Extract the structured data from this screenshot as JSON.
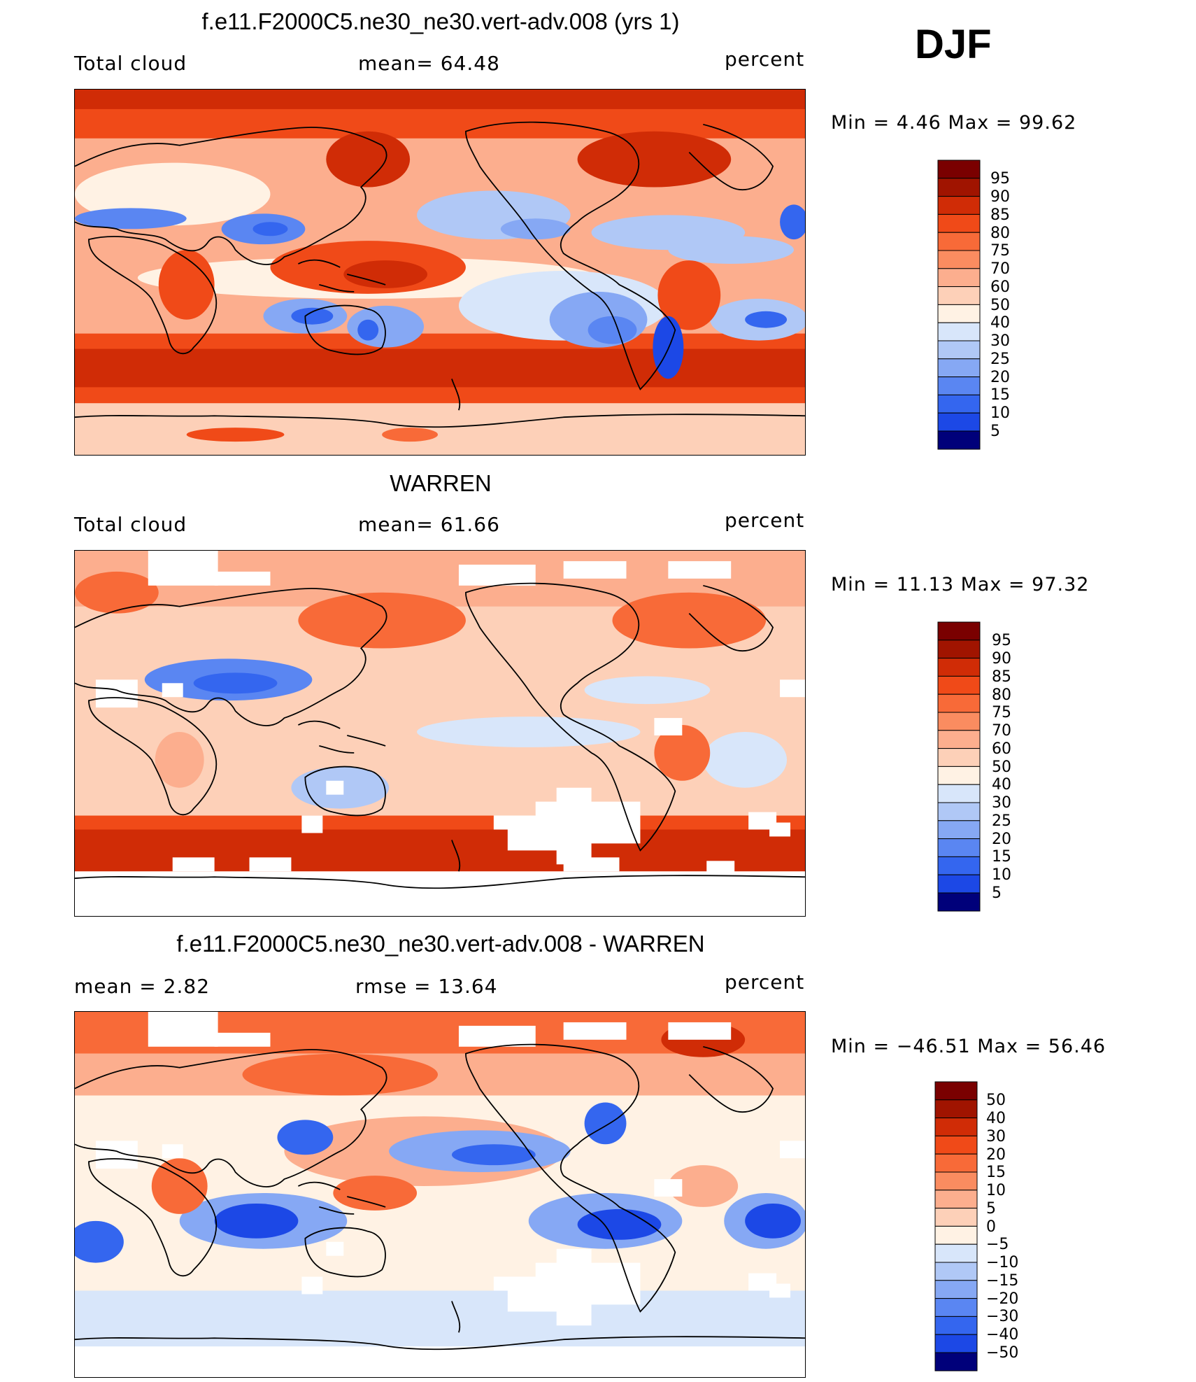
{
  "season": "DJF",
  "colors": {
    "scale": [
      "#00007a",
      "#0b28c0",
      "#1c48e6",
      "#3466ef",
      "#5a86f2",
      "#86a8f4",
      "#b0c8f6",
      "#d8e6fa",
      "#fff2e4",
      "#fdd0b8",
      "#fcae8e",
      "#fa8c60",
      "#f86a38",
      "#f04a18",
      "#d02c06",
      "#a01400",
      "#7a0000"
    ]
  },
  "panels": [
    {
      "title": "f.e11.F2000C5.ne30_ne30.vert-adv.008 (yrs 1)",
      "left": "Total cloud",
      "center": "mean=   64.48",
      "right": "percent",
      "minmax": "Min =    4.46  Max =   99.62",
      "colorbar_labels": [
        "95",
        "90",
        "85",
        "80",
        "75",
        "70",
        "60",
        "50",
        "40",
        "30",
        "25",
        "20",
        "15",
        "10",
        "5"
      ]
    },
    {
      "title": "WARREN",
      "left": "Total cloud",
      "center": "mean=   61.66",
      "right": "percent",
      "minmax": "Min =   11.13  Max =   97.32",
      "colorbar_labels": [
        "95",
        "90",
        "85",
        "80",
        "75",
        "70",
        "60",
        "50",
        "40",
        "30",
        "25",
        "20",
        "15",
        "10",
        "5"
      ]
    },
    {
      "title": "f.e11.F2000C5.ne30_ne30.vert-adv.008 - WARREN",
      "left": "mean =    2.82",
      "center": "rmse =   13.64",
      "right": "percent",
      "minmax": "Min = −46.51  Max =   56.46",
      "colorbar_labels": [
        "50",
        "40",
        "30",
        "20",
        "15",
        "10",
        "5",
        "0",
        "−5",
        "−10",
        "−15",
        "−20",
        "−30",
        "−40",
        "−50"
      ]
    }
  ]
}
